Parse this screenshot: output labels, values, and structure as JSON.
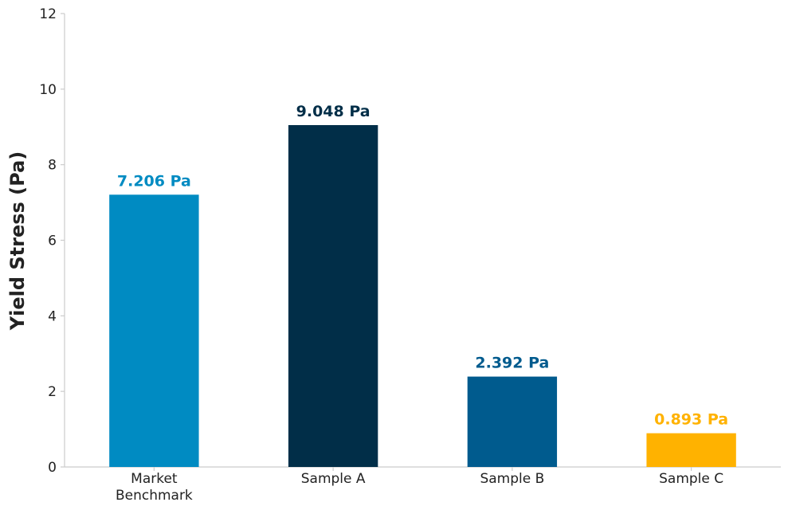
{
  "chart_data": {
    "type": "bar",
    "title": "",
    "xlabel": "",
    "ylabel": "Yield Stress (Pa)",
    "ylim": [
      0,
      12
    ],
    "yticks": [
      0,
      2,
      4,
      6,
      8,
      10,
      12
    ],
    "grid": false,
    "legend": "none",
    "categories": [
      [
        "Market",
        "Benchmark"
      ],
      [
        "Sample A"
      ],
      [
        "Sample B"
      ],
      [
        "Sample C"
      ]
    ],
    "values": [
      7.206,
      9.048,
      2.392,
      0.893
    ],
    "value_labels": [
      "7.206 Pa",
      "9.048 Pa",
      "2.392 Pa",
      "0.893 Pa"
    ],
    "colors": [
      "#008bc2",
      "#012e48",
      "#005b8e",
      "#ffb200"
    ],
    "axis_color": "#cccccc"
  }
}
